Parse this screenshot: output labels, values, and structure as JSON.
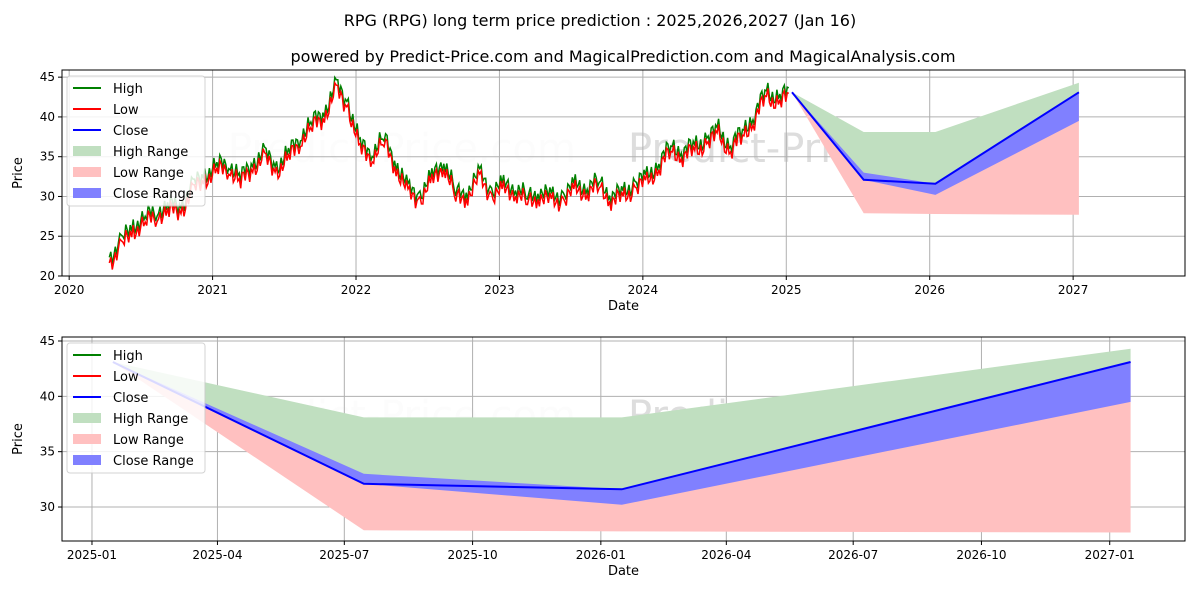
{
  "title": "RPG (RPG) long term price prediction : 2025,2026,2027 (Jan 16)",
  "subtitle": "powered by Predict-Price.com and MagicalPrediction.com and MagicalAnalysis.com",
  "watermark": "Predict-Price.com",
  "colors": {
    "high": "#008000",
    "low": "#ff0000",
    "close": "#0000ff",
    "high_range": "#c0dfc0",
    "low_range": "#ffc0c0",
    "close_range": "#8080ff"
  },
  "chart_data": [
    {
      "type": "line",
      "xlabel": "Date",
      "ylabel": "Price",
      "xlim": [
        2019.95,
        2027.78
      ],
      "ylim": [
        20,
        45.9
      ],
      "xticks": [
        2020,
        2021,
        2022,
        2023,
        2024,
        2025,
        2026,
        2027
      ],
      "xtick_labels": [
        "2020",
        "2021",
        "2022",
        "2023",
        "2024",
        "2025",
        "2026",
        "2027"
      ],
      "yticks": [
        20,
        25,
        30,
        35,
        40,
        45
      ],
      "ytick_labels": [
        "20",
        "25",
        "30",
        "35",
        "40",
        "45"
      ],
      "legend": {
        "position": "top-left",
        "entries": [
          "High",
          "Low",
          "Close",
          "High Range",
          "Low Range",
          "Close Range"
        ]
      },
      "history": {
        "start": 2020.28,
        "step_years": 0.0833,
        "close": [
          22,
          24,
          26,
          27,
          28,
          28.5,
          28.5,
          31,
          32.5,
          33.5,
          34,
          32,
          34,
          35,
          33.5,
          35,
          37.5,
          39,
          40.5,
          43.5,
          41.5,
          36,
          35.5,
          37,
          34,
          30.5,
          30,
          32,
          34.5,
          30,
          30.5,
          32.5,
          30.5,
          31,
          31,
          29.5,
          30.5,
          29.5,
          30,
          31,
          31,
          31.5,
          30,
          30,
          31.5,
          32,
          34,
          36,
          35.5,
          36,
          37,
          38,
          36,
          38,
          40,
          43,
          42,
          43
        ]
      },
      "forecast": {
        "x": [
          2025.04,
          2025.54,
          2026.04,
          2027.04
        ],
        "close": [
          43.1,
          32.1,
          31.6,
          43.1
        ],
        "high": [
          43.1,
          38.1,
          38.1,
          44.3
        ],
        "low": [
          43.1,
          27.9,
          27.8,
          27.7
        ],
        "close_upper": [
          43.1,
          33.0,
          31.6,
          43.1
        ],
        "close_lower": [
          43.1,
          32.1,
          30.2,
          39.5
        ]
      }
    },
    {
      "type": "line",
      "xlabel": "Date",
      "ylabel": "Price",
      "xlim_days_from_2025_01_01": [
        -21.5,
        784
      ],
      "ylim": [
        26.93,
        45.36
      ],
      "xticks_days": [
        0,
        90,
        181,
        273,
        365,
        455,
        546,
        638,
        730
      ],
      "xtick_labels": [
        "2025-01",
        "2025-04",
        "2025-07",
        "2025-10",
        "2026-01",
        "2026-04",
        "2026-07",
        "2026-10",
        "2027-01"
      ],
      "yticks": [
        30,
        35,
        40,
        45
      ],
      "ytick_labels": [
        "30",
        "35",
        "40",
        "45"
      ],
      "legend": {
        "position": "top-left",
        "entries": [
          "High",
          "Low",
          "Close",
          "High Range",
          "Low Range",
          "Close Range"
        ]
      },
      "forecast": {
        "x_days": [
          15,
          195,
          380,
          745
        ],
        "close": [
          43.1,
          32.1,
          31.6,
          43.1
        ],
        "high": [
          43.1,
          38.1,
          38.1,
          44.3
        ],
        "low": [
          43.1,
          27.9,
          27.8,
          27.7
        ],
        "close_upper": [
          43.1,
          33.0,
          31.6,
          43.1
        ],
        "close_lower": [
          43.1,
          32.1,
          30.2,
          39.5
        ]
      }
    }
  ]
}
